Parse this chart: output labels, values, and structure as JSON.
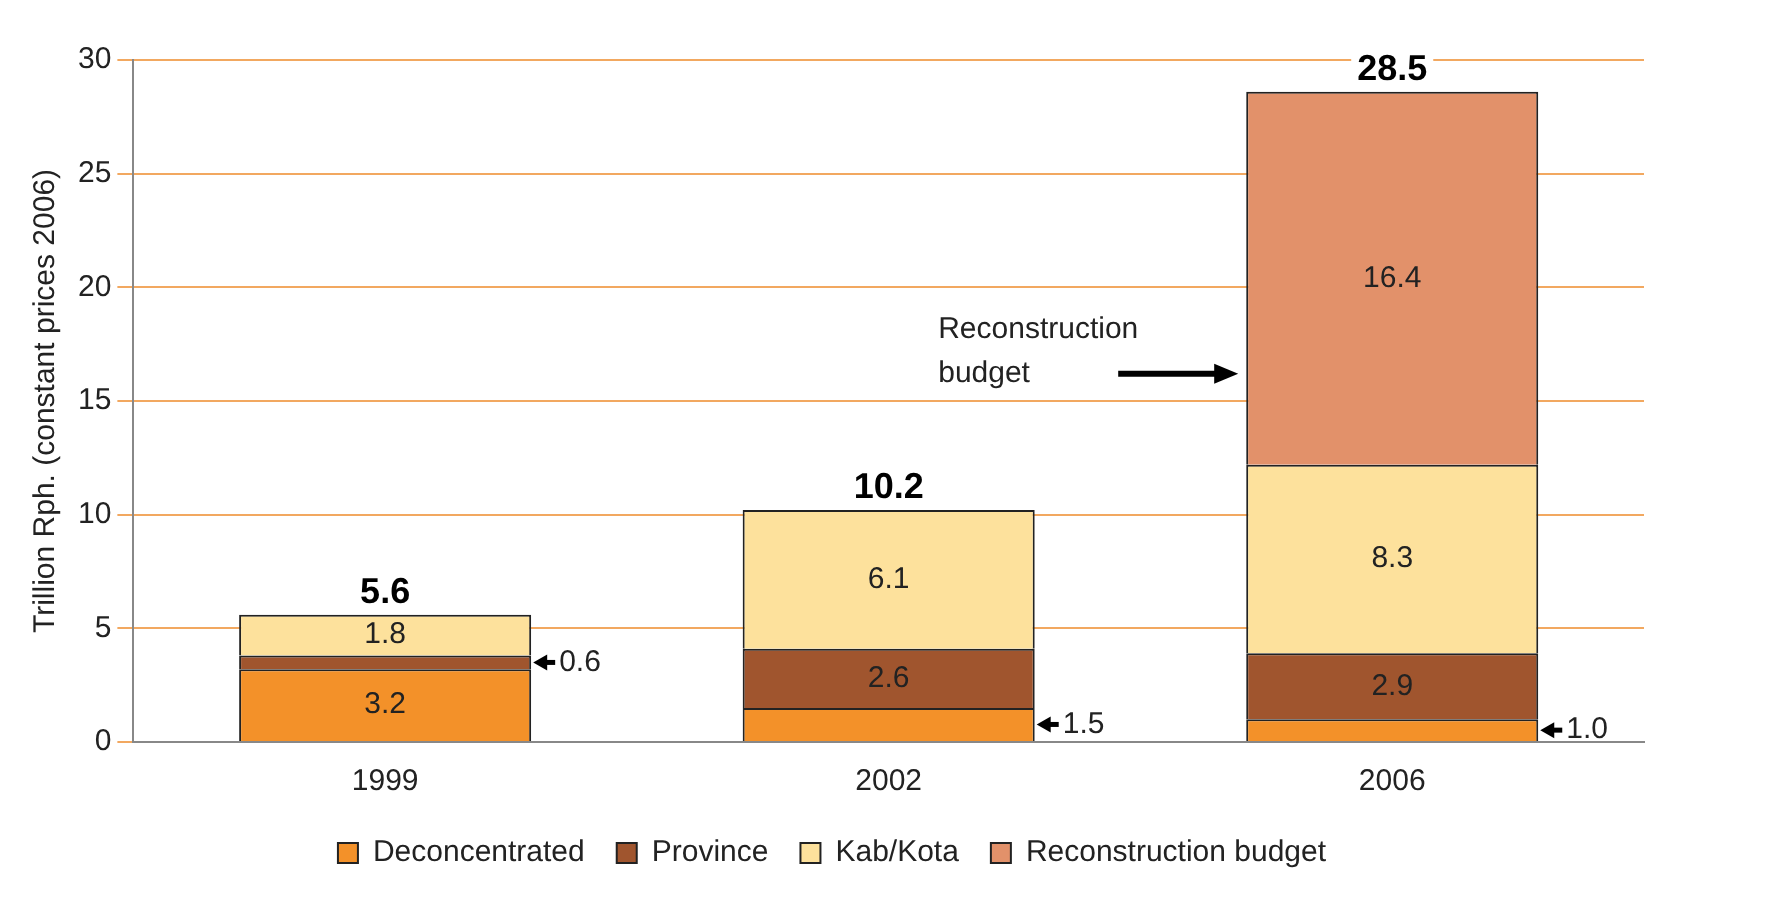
{
  "chart_data": {
    "type": "bar",
    "stacked": true,
    "ylabel": "Trillion Rph. (constant prices 2006)",
    "categories": [
      "1999",
      "2002",
      "2006"
    ],
    "series": [
      {
        "name": "Deconcentrated",
        "color": "#f39129",
        "values": [
          3.2,
          1.5,
          1.0
        ],
        "value_labels": [
          "3.2",
          "1.5",
          "1.0"
        ]
      },
      {
        "name": "Province",
        "color": "#a0552e",
        "values": [
          0.6,
          2.6,
          2.9
        ],
        "value_labels": [
          "0.6",
          "2.6",
          "2.9"
        ]
      },
      {
        "name": "Kab/Kota",
        "color": "#fde19c",
        "values": [
          1.8,
          6.1,
          8.3
        ],
        "value_labels": [
          "1.8",
          "6.1",
          "8.3"
        ]
      },
      {
        "name": "Reconstruction budget",
        "color": "#e2916a",
        "values": [
          null,
          null,
          16.4
        ],
        "value_labels": [
          null,
          null,
          "16.4"
        ]
      }
    ],
    "totals": [
      "5.6",
      "10.2",
      "28.5"
    ],
    "annotations": [
      "Reconstruction budget"
    ],
    "ylim": [
      0,
      30
    ],
    "yticks": [
      0,
      5,
      10,
      15,
      20,
      25,
      30
    ],
    "grid": "y",
    "legend": "bottom"
  }
}
